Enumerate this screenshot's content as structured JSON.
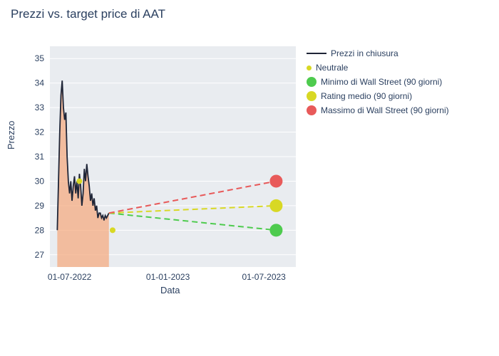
{
  "chart": {
    "title": "Prezzi vs. target price di AAT",
    "xlabel": "Data",
    "ylabel": "Prezzo",
    "background_color": "#ffffff",
    "plot_background": "#e9ecf0",
    "ylim": [
      26.5,
      35.5
    ],
    "yticks": [
      27,
      28,
      29,
      30,
      31,
      32,
      33,
      34,
      35
    ],
    "xticks": [
      {
        "pos": 0.08,
        "label": "01-07-2022"
      },
      {
        "pos": 0.48,
        "label": "01-01-2023"
      },
      {
        "pos": 0.87,
        "label": "01-07-2023"
      }
    ],
    "price_series": {
      "x": [
        0.03,
        0.04,
        0.045,
        0.05,
        0.055,
        0.06,
        0.065,
        0.07,
        0.075,
        0.08,
        0.085,
        0.09,
        0.095,
        0.1,
        0.105,
        0.11,
        0.115,
        0.12,
        0.125,
        0.13,
        0.135,
        0.14,
        0.145,
        0.15,
        0.155,
        0.16,
        0.165,
        0.17,
        0.175,
        0.18,
        0.185,
        0.19,
        0.195,
        0.2,
        0.205,
        0.21,
        0.215,
        0.22,
        0.225,
        0.23,
        0.235,
        0.24
      ],
      "y": [
        28.0,
        32.0,
        33.5,
        34.1,
        33.0,
        32.5,
        32.8,
        31.0,
        30.0,
        29.5,
        30.0,
        29.2,
        29.8,
        30.2,
        29.5,
        30.0,
        29.3,
        30.3,
        29.8,
        29.0,
        29.5,
        30.5,
        30.0,
        30.7,
        30.2,
        29.8,
        29.2,
        29.5,
        29.0,
        29.3,
        28.8,
        29.0,
        28.5,
        28.7,
        28.7,
        28.5,
        28.6,
        28.4,
        28.6,
        28.5,
        28.6,
        28.7
      ],
      "color": "#1f2537"
    },
    "neutral_points": [
      {
        "x": 0.12,
        "y": 30.0
      },
      {
        "x": 0.255,
        "y": 28.0
      }
    ],
    "neutral_color": "#d8d824",
    "targets": {
      "start_x": 0.24,
      "start_y": 28.7,
      "end_x": 0.92,
      "min": {
        "value": 28.0,
        "color": "#4ecb4e"
      },
      "mid": {
        "value": 29.0,
        "color": "#d8d824"
      },
      "max": {
        "value": 30.0,
        "color": "#e85a5a"
      }
    },
    "marker_radius_big": 9,
    "legend": [
      {
        "type": "line",
        "color": "#1f2537",
        "label": "Prezzi in chiusura"
      },
      {
        "type": "dot-small",
        "color": "#d8d824",
        "label": "Neutrale"
      },
      {
        "type": "dot-big",
        "color": "#4ecb4e",
        "label": "Minimo di Wall Street (90 giorni)"
      },
      {
        "type": "dot-big",
        "color": "#d8d824",
        "label": "Rating medio (90 giorni)"
      },
      {
        "type": "dot-big",
        "color": "#e85a5a",
        "label": "Massimo di Wall Street (90 giorni)"
      }
    ]
  }
}
